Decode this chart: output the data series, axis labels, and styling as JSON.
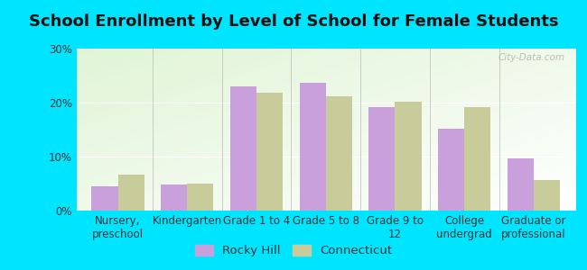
{
  "title": "School Enrollment by Level of School for Female Students",
  "categories": [
    "Nursery,\npreschool",
    "Kindergarten",
    "Grade 1 to 4",
    "Grade 5 to 8",
    "Grade 9 to\n12",
    "College\nundergrad",
    "Graduate or\nprofessional"
  ],
  "rocky_hill": [
    4.5,
    4.8,
    23.0,
    23.7,
    19.2,
    15.2,
    9.7
  ],
  "connecticut": [
    6.7,
    5.0,
    21.8,
    21.1,
    20.1,
    19.1,
    5.7
  ],
  "rocky_hill_color": "#c9a0dc",
  "connecticut_color": "#c8cc9a",
  "background_outer": "#00e5ff",
  "ylim": [
    0,
    30
  ],
  "yticks": [
    0,
    10,
    20,
    30
  ],
  "ytick_labels": [
    "0%",
    "10%",
    "20%",
    "30%"
  ],
  "bar_width": 0.38,
  "title_fontsize": 13,
  "tick_fontsize": 8.5,
  "legend_fontsize": 9.5,
  "watermark": "City-Data.com"
}
